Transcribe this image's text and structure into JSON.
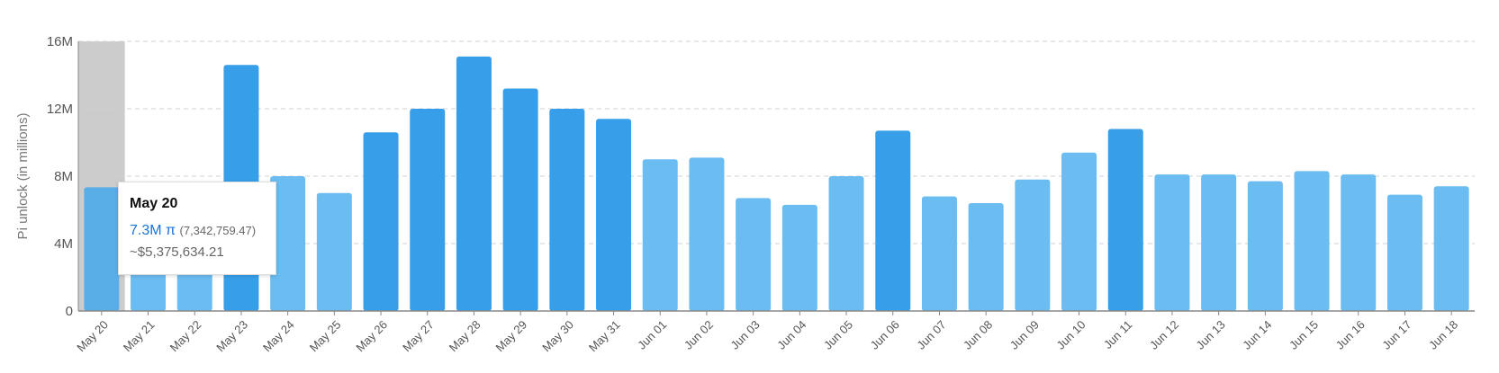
{
  "chart_data": {
    "type": "bar",
    "ylabel": "Pi unlock (in millions)",
    "xlabel": "",
    "ylim": [
      0,
      16
    ],
    "yticks": [
      "0",
      "4M",
      "8M",
      "12M",
      "16M"
    ],
    "grid": true,
    "categories": [
      "May 20",
      "May 21",
      "May 22",
      "May 23",
      "May 24",
      "May 25",
      "May 26",
      "May 27",
      "May 28",
      "May 29",
      "May 30",
      "May 31",
      "Jun 01",
      "Jun 02",
      "Jun 03",
      "Jun 04",
      "Jun 05",
      "Jun 06",
      "Jun 07",
      "Jun 08",
      "Jun 09",
      "Jun 10",
      "Jun 11",
      "Jun 12",
      "Jun 13",
      "Jun 14",
      "Jun 15",
      "Jun 16",
      "Jun 17",
      "Jun 18"
    ],
    "values": [
      7.34,
      7.2,
      7.2,
      14.6,
      8.0,
      7.0,
      10.6,
      12.0,
      15.1,
      13.2,
      12.0,
      11.4,
      9.0,
      9.1,
      6.7,
      6.3,
      8.0,
      10.7,
      6.8,
      6.4,
      7.8,
      9.4,
      10.8,
      8.1,
      8.1,
      7.7,
      8.3,
      8.1,
      6.9,
      7.4
    ],
    "highlighted_category": "May 20",
    "colors": {
      "bar_light": "#6bbcf0",
      "bar_dark": "#379fe9",
      "highlight_band": "#cccccc",
      "grid": "#d0d0d0",
      "axis": "#888888"
    }
  },
  "tooltip": {
    "date": "May 20",
    "amount": "7.3M π",
    "exact": "(7,342,759.47)",
    "usd": "~$5,375,634.21"
  }
}
